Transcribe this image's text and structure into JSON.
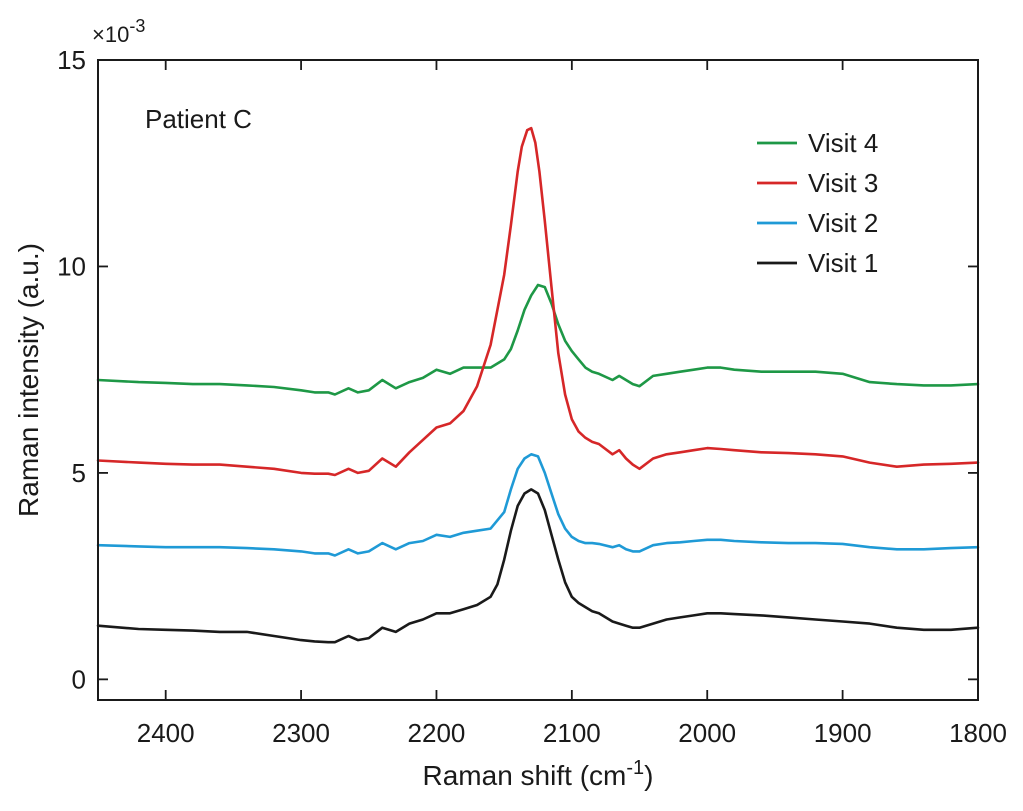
{
  "chart_data": {
    "type": "line",
    "xlabel": "Raman shift (cm",
    "xlabel_sup": "-1",
    "xlabel_suffix": ")",
    "ylabel": "Raman intensity (a.u.)",
    "y_exponent_prefix": "×10",
    "y_exponent": "-3",
    "annotation": "Patient C",
    "xlim": [
      2450,
      1800
    ],
    "ylim": [
      -0.5,
      15
    ],
    "x_reversed": true,
    "x_ticks": [
      2400,
      2300,
      2200,
      2100,
      2000,
      1900,
      1800
    ],
    "y_ticks": [
      0,
      5,
      10,
      15
    ],
    "grid": false,
    "legend_position": "top-right",
    "legend": [
      "Visit 4",
      "Visit 3",
      "Visit 2",
      "Visit 1"
    ],
    "series": [
      {
        "name": "Visit 4",
        "color": "#1e9846",
        "x": [
          2450,
          2420,
          2400,
          2380,
          2360,
          2340,
          2320,
          2300,
          2290,
          2280,
          2275,
          2265,
          2258,
          2250,
          2240,
          2230,
          2220,
          2210,
          2200,
          2190,
          2180,
          2170,
          2160,
          2150,
          2145,
          2140,
          2135,
          2130,
          2125,
          2120,
          2115,
          2110,
          2105,
          2100,
          2095,
          2090,
          2085,
          2080,
          2070,
          2065,
          2060,
          2055,
          2050,
          2040,
          2030,
          2020,
          2010,
          2000,
          1990,
          1980,
          1960,
          1940,
          1920,
          1900,
          1880,
          1860,
          1840,
          1820,
          1800
        ],
        "y": [
          7.25,
          7.2,
          7.18,
          7.15,
          7.15,
          7.12,
          7.08,
          7.0,
          6.95,
          6.95,
          6.9,
          7.05,
          6.95,
          7.0,
          7.25,
          7.05,
          7.2,
          7.3,
          7.5,
          7.4,
          7.55,
          7.55,
          7.55,
          7.75,
          8.0,
          8.45,
          8.95,
          9.3,
          9.55,
          9.5,
          9.1,
          8.6,
          8.2,
          7.95,
          7.75,
          7.55,
          7.45,
          7.4,
          7.25,
          7.35,
          7.25,
          7.15,
          7.1,
          7.35,
          7.4,
          7.45,
          7.5,
          7.55,
          7.55,
          7.5,
          7.45,
          7.45,
          7.45,
          7.4,
          7.2,
          7.15,
          7.12,
          7.12,
          7.15
        ]
      },
      {
        "name": "Visit 3",
        "color": "#d62728",
        "x": [
          2450,
          2420,
          2400,
          2380,
          2360,
          2340,
          2320,
          2300,
          2290,
          2280,
          2275,
          2265,
          2258,
          2250,
          2240,
          2230,
          2220,
          2210,
          2200,
          2190,
          2180,
          2170,
          2160,
          2150,
          2145,
          2140,
          2137,
          2133,
          2130,
          2127,
          2124,
          2120,
          2115,
          2110,
          2105,
          2100,
          2095,
          2090,
          2085,
          2080,
          2070,
          2065,
          2060,
          2055,
          2050,
          2040,
          2030,
          2020,
          2010,
          2000,
          1990,
          1980,
          1960,
          1940,
          1920,
          1900,
          1880,
          1860,
          1840,
          1820,
          1800
        ],
        "y": [
          5.3,
          5.25,
          5.22,
          5.2,
          5.2,
          5.15,
          5.1,
          5.0,
          4.98,
          4.98,
          4.95,
          5.1,
          5.0,
          5.05,
          5.35,
          5.15,
          5.5,
          5.8,
          6.1,
          6.2,
          6.5,
          7.1,
          8.1,
          9.8,
          11.0,
          12.3,
          12.9,
          13.3,
          13.35,
          13.0,
          12.3,
          11.1,
          9.5,
          7.9,
          6.9,
          6.3,
          6.0,
          5.85,
          5.75,
          5.7,
          5.45,
          5.55,
          5.35,
          5.2,
          5.1,
          5.35,
          5.45,
          5.5,
          5.55,
          5.6,
          5.58,
          5.55,
          5.5,
          5.48,
          5.45,
          5.4,
          5.25,
          5.15,
          5.2,
          5.22,
          5.25
        ]
      },
      {
        "name": "Visit 2",
        "color": "#1f9ad6",
        "x": [
          2450,
          2420,
          2400,
          2380,
          2360,
          2340,
          2320,
          2300,
          2290,
          2280,
          2275,
          2265,
          2258,
          2250,
          2240,
          2230,
          2220,
          2210,
          2200,
          2190,
          2180,
          2170,
          2160,
          2150,
          2145,
          2140,
          2135,
          2130,
          2125,
          2120,
          2115,
          2110,
          2105,
          2100,
          2095,
          2090,
          2085,
          2080,
          2070,
          2065,
          2060,
          2055,
          2050,
          2040,
          2030,
          2020,
          2010,
          2000,
          1990,
          1980,
          1960,
          1940,
          1920,
          1900,
          1880,
          1860,
          1840,
          1820,
          1800
        ],
        "y": [
          3.25,
          3.22,
          3.2,
          3.2,
          3.2,
          3.18,
          3.15,
          3.1,
          3.05,
          3.05,
          3.0,
          3.15,
          3.05,
          3.1,
          3.3,
          3.15,
          3.3,
          3.35,
          3.5,
          3.45,
          3.55,
          3.6,
          3.65,
          4.05,
          4.6,
          5.1,
          5.35,
          5.45,
          5.4,
          5.0,
          4.5,
          4.0,
          3.65,
          3.45,
          3.35,
          3.3,
          3.3,
          3.28,
          3.2,
          3.25,
          3.15,
          3.1,
          3.1,
          3.25,
          3.3,
          3.32,
          3.35,
          3.38,
          3.38,
          3.35,
          3.32,
          3.3,
          3.3,
          3.28,
          3.2,
          3.15,
          3.15,
          3.18,
          3.2
        ]
      },
      {
        "name": "Visit 1",
        "color": "#1a1a1a",
        "x": [
          2450,
          2420,
          2400,
          2380,
          2360,
          2340,
          2320,
          2300,
          2290,
          2280,
          2275,
          2265,
          2258,
          2250,
          2240,
          2230,
          2220,
          2210,
          2200,
          2190,
          2180,
          2170,
          2160,
          2155,
          2150,
          2145,
          2140,
          2135,
          2130,
          2125,
          2120,
          2115,
          2110,
          2105,
          2100,
          2095,
          2090,
          2085,
          2080,
          2075,
          2070,
          2065,
          2060,
          2055,
          2050,
          2040,
          2030,
          2020,
          2010,
          2000,
          1990,
          1980,
          1960,
          1940,
          1920,
          1900,
          1880,
          1860,
          1840,
          1820,
          1800
        ],
        "y": [
          1.3,
          1.22,
          1.2,
          1.18,
          1.15,
          1.15,
          1.05,
          0.95,
          0.92,
          0.9,
          0.9,
          1.05,
          0.95,
          1.0,
          1.25,
          1.15,
          1.35,
          1.45,
          1.6,
          1.6,
          1.7,
          1.8,
          2.0,
          2.3,
          2.9,
          3.6,
          4.2,
          4.5,
          4.6,
          4.5,
          4.1,
          3.5,
          2.9,
          2.35,
          2.0,
          1.85,
          1.75,
          1.65,
          1.6,
          1.5,
          1.4,
          1.35,
          1.3,
          1.25,
          1.25,
          1.35,
          1.45,
          1.5,
          1.55,
          1.6,
          1.6,
          1.58,
          1.55,
          1.5,
          1.45,
          1.4,
          1.35,
          1.25,
          1.2,
          1.2,
          1.25
        ]
      }
    ]
  }
}
